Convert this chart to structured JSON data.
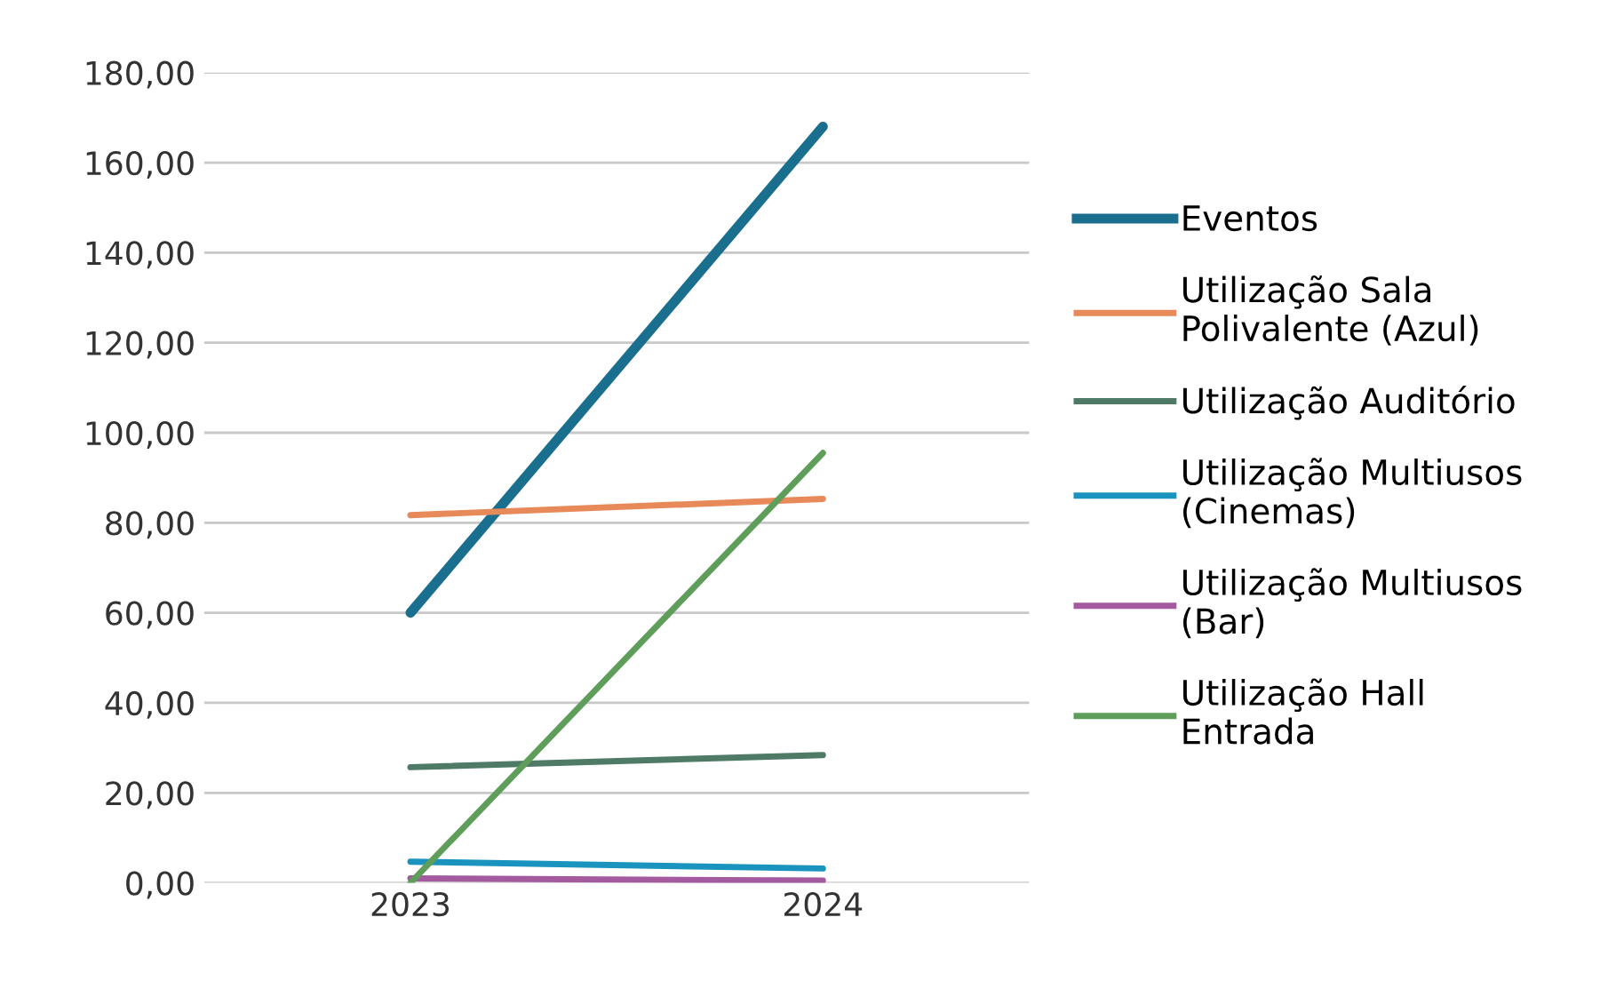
{
  "chart_data": {
    "type": "line",
    "categories": [
      "2023",
      "2024"
    ],
    "series": [
      {
        "name": "Eventos",
        "color": "#1a6e8e",
        "values": [
          60,
          168
        ]
      },
      {
        "name": "Utilização Sala\nPolivalente (Azul)",
        "color": "#e8895a",
        "values": [
          81.7,
          85.3
        ]
      },
      {
        "name": "Utilização Auditório",
        "color": "#4f7a66",
        "values": [
          25.7,
          28.4
        ]
      },
      {
        "name": "Utilização Multiusos\n(Cinemas)",
        "color": "#1a94bf",
        "values": [
          4.7,
          3.2
        ]
      },
      {
        "name": "Utilização Multiusos\n(Bar)",
        "color": "#a45a9e",
        "values": [
          1,
          0.5
        ]
      },
      {
        "name": "Utilização Hall\nEntrada",
        "color": "#5f9e5a",
        "values": [
          0,
          95.5
        ]
      }
    ],
    "ylim": [
      0,
      180
    ],
    "yticks": [
      {
        "value": 0,
        "label": "0,00"
      },
      {
        "value": 20,
        "label": "20,00"
      },
      {
        "value": 40,
        "label": "40,00"
      },
      {
        "value": 60,
        "label": "60,00"
      },
      {
        "value": 80,
        "label": "80,00"
      },
      {
        "value": 100,
        "label": "100,00"
      },
      {
        "value": 120,
        "label": "120,00"
      },
      {
        "value": 140,
        "label": "140,00"
      },
      {
        "value": 160,
        "label": "160,00"
      },
      {
        "value": 180,
        "label": "180,00"
      }
    ],
    "grid": "y",
    "legend": "right",
    "marker": "none",
    "line_style": "solid"
  }
}
